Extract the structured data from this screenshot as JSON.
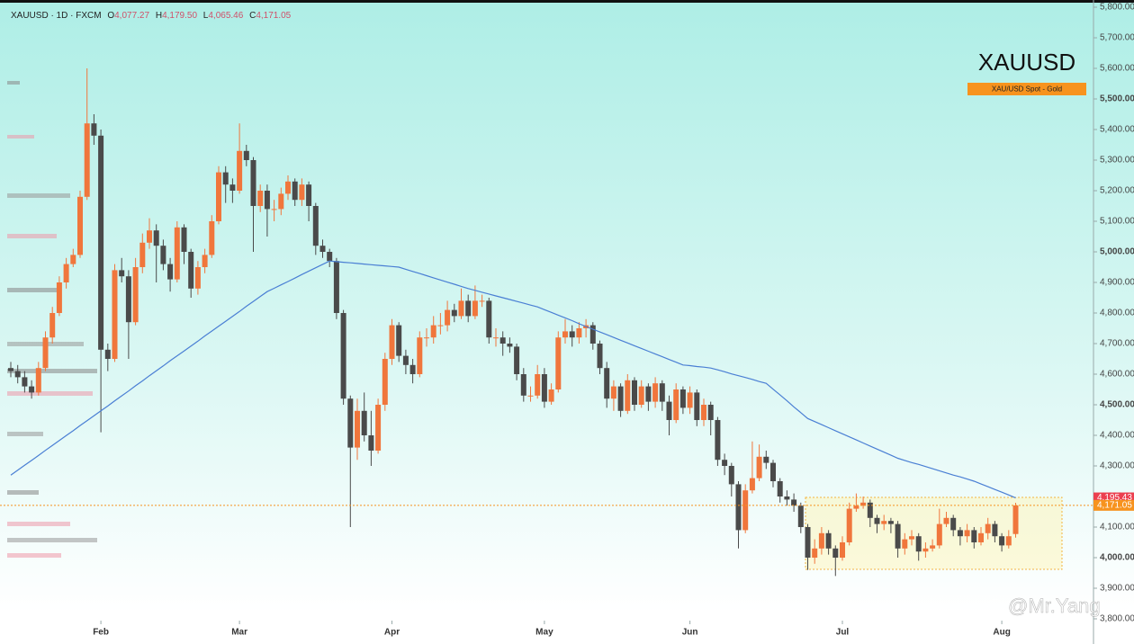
{
  "header": {
    "symbol": "XAUUSD · 1D · FXCM",
    "o": "O",
    "open": "4,077.27",
    "h": "H",
    "high": "4,179.50",
    "l": "L",
    "low": "4,065.46",
    "c": "C",
    "close": "4,171.05"
  },
  "legend": {
    "title": "XAUUSD",
    "tag": "XAU/USD Spot - Gold"
  },
  "watermark": "@Mr.Yang",
  "chart_data": {
    "type": "candlestick",
    "up_color": "#f0763c",
    "down_color": "#4a4a4a",
    "open": [
      4620,
      4610,
      4590,
      4560,
      4540,
      4620,
      4720,
      4800,
      4900,
      4960,
      4990,
      5180,
      5420,
      5380,
      4680,
      4650,
      4940,
      4920,
      4770,
      4950,
      5030,
      5070,
      5020,
      4960,
      4910,
      5080,
      5000,
      4880,
      4950,
      4990,
      5100,
      5260,
      5220,
      5200,
      5330,
      5300,
      5150,
      5200,
      5140,
      5140,
      5190,
      5230,
      5170,
      5220,
      5150,
      5020,
      5000,
      4970,
      4800,
      4520,
      4360,
      4480,
      4400,
      4350,
      4500,
      4650,
      4760,
      4660,
      4630,
      4600,
      4720,
      4720,
      4760,
      4760,
      4810,
      4790,
      4840,
      4790,
      4840,
      4840,
      4720,
      4720,
      4700,
      4690,
      4600,
      4530,
      4530,
      4600,
      4510,
      4550,
      4720,
      4740,
      4720,
      4750,
      4760,
      4700,
      4620,
      4520,
      4560,
      4480,
      4580,
      4500,
      4560,
      4510,
      4570,
      4510,
      4450,
      4550,
      4490,
      4540,
      4450,
      4500,
      4450,
      4320,
      4300,
      4240,
      4090,
      4220,
      4260,
      4330,
      4310,
      4250,
      4200,
      4190,
      4170,
      4100,
      4000,
      4030,
      4080,
      4030,
      4000,
      4050,
      4160,
      4170,
      4180,
      4130,
      4110,
      4120,
      4110,
      4030,
      4060,
      4070,
      4020,
      4030,
      4040,
      4110,
      4130,
      4090,
      4070,
      4090,
      4050,
      4080,
      4110,
      4070,
      4040,
      4077.27
    ],
    "high": [
      4640,
      4630,
      4610,
      4580,
      4640,
      4740,
      4820,
      4920,
      4980,
      5010,
      5200,
      5600,
      5450,
      5400,
      4700,
      4960,
      4980,
      4940,
      4980,
      5060,
      5110,
      5090,
      5040,
      4980,
      5100,
      5090,
      5010,
      4970,
      5010,
      5120,
      5280,
      5280,
      5240,
      5420,
      5350,
      5310,
      5220,
      5220,
      5170,
      5210,
      5250,
      5240,
      5240,
      5230,
      5160,
      5040,
      5010,
      4980,
      4810,
      4530,
      4520,
      4540,
      4480,
      4520,
      4670,
      4780,
      4770,
      4680,
      4650,
      4740,
      4750,
      4790,
      4800,
      4840,
      4830,
      4880,
      4860,
      4890,
      4860,
      4850,
      4750,
      4740,
      4720,
      4700,
      4620,
      4560,
      4630,
      4620,
      4570,
      4740,
      4780,
      4760,
      4770,
      4780,
      4770,
      4710,
      4640,
      4580,
      4570,
      4600,
      4590,
      4580,
      4570,
      4590,
      4580,
      4530,
      4570,
      4560,
      4560,
      4550,
      4520,
      4510,
      4460,
      4340,
      4310,
      4250,
      4240,
      4380,
      4370,
      4350,
      4320,
      4260,
      4220,
      4210,
      4180,
      4110,
      4060,
      4100,
      4090,
      4040,
      4070,
      4180,
      4210,
      4200,
      4190,
      4140,
      4140,
      4130,
      4120,
      4080,
      4090,
      4080,
      4050,
      4060,
      4160,
      4150,
      4140,
      4100,
      4110,
      4100,
      4100,
      4130,
      4120,
      4080,
      4090,
      4179.5
    ],
    "low": [
      4590,
      4570,
      4540,
      4520,
      4530,
      4610,
      4700,
      4790,
      4880,
      4950,
      4980,
      5170,
      5350,
      4410,
      4610,
      4640,
      4900,
      4650,
      4760,
      4930,
      5010,
      4900,
      4940,
      4870,
      4900,
      4960,
      4850,
      4860,
      4930,
      4980,
      5090,
      5160,
      5160,
      5190,
      5280,
      5000,
      5130,
      5050,
      5100,
      5120,
      5170,
      5150,
      5150,
      5100,
      4990,
      4980,
      4950,
      4780,
      4500,
      4100,
      4320,
      4380,
      4300,
      4340,
      4480,
      4630,
      4640,
      4600,
      4570,
      4590,
      4690,
      4700,
      4730,
      4740,
      4770,
      4780,
      4770,
      4780,
      4820,
      4700,
      4690,
      4660,
      4670,
      4580,
      4510,
      4510,
      4520,
      4490,
      4500,
      4540,
      4700,
      4690,
      4700,
      4720,
      4680,
      4600,
      4490,
      4480,
      4460,
      4470,
      4480,
      4490,
      4480,
      4490,
      4480,
      4400,
      4440,
      4470,
      4470,
      4430,
      4430,
      4400,
      4300,
      4270,
      4200,
      4030,
      4080,
      4210,
      4250,
      4290,
      4230,
      4180,
      4170,
      4150,
      4080,
      3960,
      3980,
      4010,
      4010,
      3940,
      3990,
      4040,
      4150,
      4160,
      4100,
      4080,
      4090,
      4080,
      4000,
      4010,
      4040,
      3990,
      4000,
      4020,
      4030,
      4100,
      4070,
      4040,
      4050,
      4030,
      4040,
      4060,
      4050,
      4020,
      4030,
      4065.46
    ],
    "close": [
      4610,
      4590,
      4560,
      4540,
      4620,
      4720,
      4800,
      4900,
      4960,
      4990,
      5180,
      5420,
      5380,
      4680,
      4650,
      4940,
      4920,
      4770,
      4950,
      5030,
      5070,
      5020,
      4960,
      4910,
      5080,
      5000,
      4880,
      4950,
      4990,
      5100,
      5260,
      5220,
      5200,
      5330,
      5300,
      5150,
      5200,
      5140,
      5140,
      5190,
      5230,
      5170,
      5220,
      5150,
      5020,
      5000,
      4970,
      4800,
      4520,
      4360,
      4480,
      4400,
      4350,
      4500,
      4650,
      4760,
      4660,
      4630,
      4600,
      4720,
      4720,
      4760,
      4760,
      4810,
      4790,
      4840,
      4790,
      4840,
      4840,
      4720,
      4720,
      4700,
      4690,
      4600,
      4530,
      4530,
      4600,
      4510,
      4550,
      4720,
      4740,
      4720,
      4750,
      4760,
      4700,
      4620,
      4520,
      4560,
      4480,
      4580,
      4500,
      4560,
      4510,
      4570,
      4510,
      4450,
      4550,
      4490,
      4540,
      4450,
      4500,
      4450,
      4320,
      4300,
      4240,
      4090,
      4220,
      4260,
      4330,
      4310,
      4250,
      4200,
      4190,
      4170,
      4100,
      4000,
      4030,
      4080,
      4030,
      4000,
      4050,
      4160,
      4170,
      4180,
      4130,
      4110,
      4120,
      4110,
      4030,
      4060,
      4070,
      4020,
      4030,
      4040,
      4110,
      4130,
      4090,
      4070,
      4090,
      4050,
      4080,
      4110,
      4070,
      4040,
      4070,
      4171.05
    ],
    "moving_average": {
      "color": "#4a7fd4",
      "values": [
        4270,
        4286,
        4302,
        4318,
        4334,
        4351,
        4367,
        4383,
        4399,
        4415,
        4432,
        4448,
        4464,
        4480,
        4496,
        4513,
        4529,
        4545,
        4562,
        4578,
        4595,
        4611,
        4627,
        4644,
        4660,
        4676,
        4692,
        4708,
        4725,
        4741,
        4757,
        4773,
        4789,
        4805,
        4822,
        4838,
        4854,
        4870,
        4881,
        4892,
        4903,
        4914,
        4926,
        4937,
        4948,
        4959,
        4970,
        4968,
        4966,
        4964,
        4962,
        4960,
        4958,
        4956,
        4954,
        4952,
        4950,
        4943,
        4936,
        4929,
        4922,
        4915,
        4908,
        4901,
        4894,
        4887,
        4880,
        4874,
        4868,
        4862,
        4856,
        4850,
        4844,
        4838,
        4832,
        4826,
        4820,
        4811,
        4802,
        4793,
        4784,
        4775,
        4765,
        4756,
        4747,
        4738,
        4729,
        4720,
        4711,
        4702,
        4693,
        4684,
        4675,
        4666,
        4657,
        4648,
        4639,
        4630,
        4628,
        4625,
        4623,
        4620,
        4614,
        4608,
        4601,
        4595,
        4589,
        4583,
        4576,
        4570,
        4551,
        4532,
        4513,
        4493,
        4474,
        4455,
        4445,
        4435,
        4425,
        4415,
        4405,
        4395,
        4385,
        4375,
        4365,
        4355,
        4345,
        4335,
        4325,
        4318,
        4311,
        4305,
        4298,
        4291,
        4284,
        4277,
        4270,
        4264,
        4257,
        4250,
        4241,
        4232,
        4223,
        4214,
        4205,
        4195.43
      ]
    },
    "ma_last": {
      "value": 4195.43,
      "label": "4,195.43",
      "color": "#ec3f4f"
    },
    "last_price": {
      "value": 4171.05,
      "label": "4,171.05",
      "color": "#f7931e"
    },
    "xticks": [
      {
        "value": 13,
        "label": "Feb"
      },
      {
        "value": 33,
        "label": "Mar"
      },
      {
        "value": 55,
        "label": "Apr"
      },
      {
        "value": 77,
        "label": "May"
      },
      {
        "value": 98,
        "label": "Jun"
      },
      {
        "value": 120,
        "label": "Jul"
      },
      {
        "value": 143,
        "label": "Aug"
      }
    ],
    "ylim": [
      3800,
      5800
    ],
    "yticks": [
      {
        "value": 3800,
        "label": "3,800.00"
      },
      {
        "value": 3900,
        "label": "3,900.00"
      },
      {
        "value": 4000,
        "label": "4,000.00"
      },
      {
        "value": 4100,
        "label": "4,100.00"
      },
      {
        "value": 4200,
        "label": "4,200.00"
      },
      {
        "value": 4300,
        "label": "4,300.00"
      },
      {
        "value": 4400,
        "label": "4,400.00"
      },
      {
        "value": 4500,
        "label": "4,500.00"
      },
      {
        "value": 4600,
        "label": "4,600.00"
      },
      {
        "value": 4700,
        "label": "4,700.00"
      },
      {
        "value": 4800,
        "label": "4,800.00"
      },
      {
        "value": 4900,
        "label": "4,900.00"
      },
      {
        "value": 5000,
        "label": "5,000.00"
      },
      {
        "value": 5100,
        "label": "5,100.00"
      },
      {
        "value": 5200,
        "label": "5,200.00"
      },
      {
        "value": 5300,
        "label": "5,300.00"
      },
      {
        "value": 5400,
        "label": "5,400.00"
      },
      {
        "value": 5500,
        "label": "5,500.00"
      },
      {
        "value": 5600,
        "label": "5,600.00"
      },
      {
        "value": 5700,
        "label": "5,700.00"
      },
      {
        "value": 5800,
        "label": "5,800.00"
      }
    ]
  }
}
